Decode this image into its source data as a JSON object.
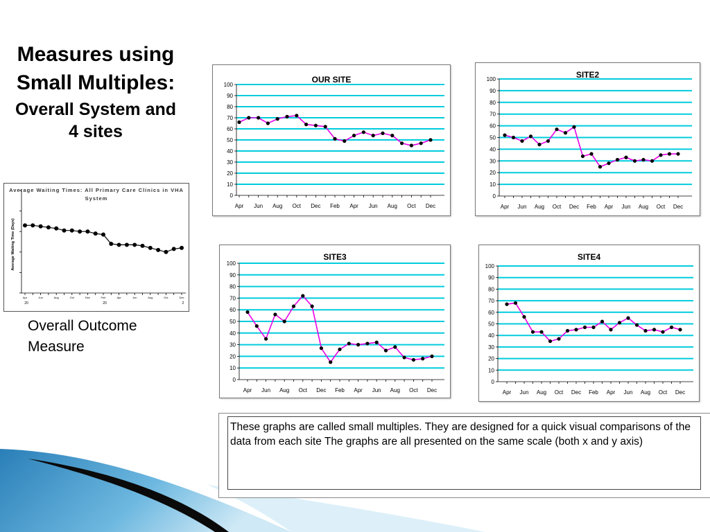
{
  "title": {
    "line1": "Measures using Small Multiples:",
    "line2": "Overall System and 4 sites"
  },
  "overall_label": "Overall Outcome Measure",
  "note": "These graphs are called small multiples.  They are designed for a quick visual comparisons of the data from each site The graphs are all presented on the same scale (both x and y axis)",
  "colors": {
    "line": "#e600e6",
    "grid": "#00ccdd",
    "marker": "#000000",
    "overview_line": "#000000"
  },
  "chart_data": [
    {
      "type": "line",
      "title": "Average Waiting Times: All Primary Care Clinics in VHA System",
      "ylabel": "Average Waiting Time (Days)",
      "x_ticks": [
        "Apr",
        "Jun",
        "Aug",
        "Oct",
        "Dec",
        "Feb",
        "Apr",
        "Jun",
        "Aug",
        "Oct",
        "Dec"
      ],
      "y_ticks": [
        "",
        "",
        "",
        "",
        "",
        ""
      ],
      "year_labels": [
        "20",
        "20",
        "2"
      ],
      "values": [
        66,
        66,
        65,
        64,
        63,
        61,
        61,
        60,
        60,
        58,
        57,
        48,
        47,
        47,
        47,
        46,
        44,
        42,
        40,
        43,
        44
      ],
      "ylim": [
        0,
        100
      ]
    },
    {
      "type": "line",
      "title": "OUR SITE",
      "x_ticks": [
        "Apr",
        "Jun",
        "Aug",
        "Oct",
        "Dec",
        "Feb",
        "Apr",
        "Jun",
        "Aug",
        "Oct",
        "Dec"
      ],
      "y_ticks": [
        "0",
        "10",
        "20",
        "30",
        "40",
        "50",
        "60",
        "70",
        "80",
        "90",
        "100"
      ],
      "values": [
        66,
        70,
        70,
        65,
        69,
        71,
        72,
        64,
        63,
        62,
        51,
        49,
        54,
        57,
        54,
        56,
        54,
        47,
        45,
        47,
        50
      ],
      "ylim": [
        0,
        100
      ]
    },
    {
      "type": "line",
      "title": "SITE2",
      "x_ticks": [
        "Apr",
        "Jun",
        "Aug",
        "Oct",
        "Dec",
        "Feb",
        "Apr",
        "Jun",
        "Aug",
        "Oct",
        "Dec"
      ],
      "y_ticks": [
        "0",
        "10",
        "20",
        "30",
        "40",
        "50",
        "60",
        "70",
        "80",
        "90",
        "100"
      ],
      "values": [
        52,
        50,
        47,
        51,
        44,
        47,
        57,
        54,
        59,
        34,
        36,
        25,
        28,
        31,
        33,
        30,
        31,
        30,
        35,
        36,
        36
      ],
      "ylim": [
        0,
        100
      ]
    },
    {
      "type": "line",
      "title": "SITE3",
      "x_ticks": [
        "Apr",
        "Jun",
        "Aug",
        "Oct",
        "Dec",
        "Feb",
        "Apr",
        "Jun",
        "Aug",
        "Oct",
        "Dec"
      ],
      "y_ticks": [
        "0",
        "10",
        "20",
        "30",
        "40",
        "50",
        "60",
        "70",
        "80",
        "90",
        "100"
      ],
      "values": [
        58,
        46,
        35,
        56,
        50,
        63,
        72,
        63,
        27,
        15,
        26,
        31,
        30,
        31,
        32,
        25,
        28,
        19,
        17,
        18,
        20
      ],
      "ylim": [
        0,
        100
      ]
    },
    {
      "type": "line",
      "title": "SITE4",
      "x_ticks": [
        "Apr",
        "Jun",
        "Aug",
        "Oct",
        "Dec",
        "Feb",
        "Apr",
        "Jun",
        "Aug",
        "Oct",
        "Dec"
      ],
      "y_ticks": [
        "0",
        "10",
        "20",
        "30",
        "40",
        "50",
        "60",
        "70",
        "80",
        "90",
        "100"
      ],
      "values": [
        67,
        68,
        56,
        43,
        43,
        35,
        37,
        44,
        45,
        47,
        47,
        52,
        45,
        51,
        55,
        49,
        44,
        45,
        43,
        47,
        45
      ],
      "ylim": [
        0,
        100
      ]
    }
  ]
}
